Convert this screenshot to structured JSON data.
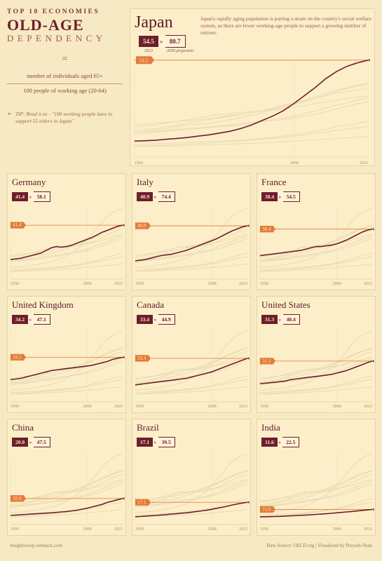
{
  "colors": {
    "bg": "#f7e9c4",
    "panel_bg": "#fbeec9",
    "dark": "#6e1e2c",
    "accent": "#e57a3a",
    "ghost": "#e8d4a0",
    "grid": "#d9c28f",
    "text_muted": "#9a5a4a"
  },
  "header": {
    "eyebrow": "TOP 10 ECONOMIES",
    "title1": "OLD-AGE",
    "title2": "DEPENDENCY",
    "eq": "=",
    "numerator": "number of individuals aged 65+",
    "denominator": "100 people of working age (20-64)",
    "tip": "TIP: Read it as - \"100 working people have to support 55 elders in Japan\""
  },
  "hero": {
    "country": "Japan",
    "desc": "Japan's rapidly aging population is putting a strain on the country's social welfare system, as there are fewer working-age people to support a growing number of retirees.",
    "current": "54.5",
    "projection": "80.7",
    "year_current": "2023",
    "year_proj": "2050 projection",
    "tag": "54.5",
    "xaxis": {
      "start": "1950",
      "mid": "2000",
      "end": "2023"
    },
    "series": [
      9,
      9.2,
      9.5,
      10,
      10.5,
      11,
      11.8,
      12.5,
      13.5,
      14.5,
      16,
      18,
      20.5,
      23,
      26,
      30,
      34.5,
      39,
      44,
      48,
      51,
      53,
      54.5
    ],
    "ghosts": [
      [
        15,
        15.5,
        16,
        17,
        18,
        19,
        20,
        21,
        22.5,
        23.5,
        24,
        25,
        26,
        27.5,
        29,
        30.5,
        32,
        34,
        36,
        37.5,
        39,
        40.5,
        41.4
      ],
      [
        14,
        14.5,
        15,
        16,
        17,
        18,
        18.5,
        19,
        20,
        21,
        22,
        23.5,
        25,
        26.5,
        28,
        29.5,
        31,
        33,
        35,
        37,
        38.5,
        40,
        40.9
      ],
      [
        18,
        18.5,
        19,
        19.5,
        20,
        20.5,
        21,
        21.5,
        22,
        23,
        24,
        25,
        26,
        27,
        28.5,
        30,
        31.5,
        33,
        34.5,
        36,
        37,
        37.8,
        38.4
      ],
      [
        17,
        17.5,
        18,
        19,
        20,
        21,
        22,
        23,
        24,
        24.5,
        25,
        25.5,
        26,
        26.5,
        27,
        28,
        29,
        30,
        31,
        32,
        33,
        33.8,
        34.2
      ],
      [
        13,
        13.5,
        14,
        14.5,
        15,
        15.5,
        16,
        16.5,
        17,
        17.5,
        18,
        19,
        20,
        21,
        22,
        23,
        24.5,
        26,
        27.5,
        29,
        30.5,
        32,
        33.4
      ],
      [
        14,
        14.3,
        14.7,
        15,
        15.5,
        16,
        16.5,
        17,
        17.5,
        18,
        19,
        19.5,
        20,
        20.5,
        21,
        22,
        23,
        24,
        25.5,
        27,
        28.5,
        30,
        31.3
      ],
      [
        7,
        7.2,
        7.5,
        7.8,
        8,
        8.3,
        8.5,
        8.8,
        9,
        9.3,
        9.7,
        10,
        10.5,
        11,
        11.8,
        12.5,
        13.5,
        14.5,
        15.5,
        17,
        18,
        19,
        20
      ],
      [
        6,
        6.2,
        6.5,
        6.8,
        7,
        7.3,
        7.6,
        8,
        8.3,
        8.7,
        9,
        9.5,
        10,
        10.5,
        11,
        11.7,
        12.5,
        13.2,
        14,
        15,
        15.8,
        16.5,
        17.1
      ],
      [
        6,
        6,
        6.1,
        6.2,
        6.3,
        6.5,
        6.7,
        6.9,
        7.1,
        7.3,
        7.5,
        7.8,
        8,
        8.3,
        8.6,
        9,
        9.3,
        9.7,
        10,
        10.4,
        10.8,
        11.2,
        11.6
      ]
    ]
  },
  "panels": [
    {
      "country": "Germany",
      "current": "41.4",
      "projection": "58.1",
      "tag": "41.4",
      "series": [
        15,
        15.5,
        16,
        17,
        18,
        19,
        20,
        22,
        24,
        25,
        24.5,
        25,
        26,
        27.5,
        29,
        30.5,
        32,
        34,
        36,
        37.5,
        39,
        40.5,
        41.4
      ]
    },
    {
      "country": "Italy",
      "current": "40.9",
      "projection": "74.4",
      "tag": "40.9",
      "series": [
        14,
        14.5,
        15,
        16,
        17,
        18,
        18.5,
        19,
        20,
        21,
        22,
        23.5,
        25,
        26.5,
        28,
        29.5,
        31,
        33,
        35,
        37,
        38.5,
        40,
        40.9
      ]
    },
    {
      "country": "France",
      "current": "38.4",
      "projection": "54.5",
      "tag": "38.4",
      "series": [
        18,
        18.5,
        19,
        19.5,
        20,
        20.5,
        21,
        21.5,
        22,
        23,
        24,
        25,
        25,
        25.5,
        26,
        27,
        28.5,
        30,
        32,
        34,
        36,
        37.5,
        38.4
      ]
    },
    {
      "country": "United Kingdom",
      "current": "34.2",
      "projection": "47.1",
      "tag": "34.2",
      "series": [
        17,
        17.5,
        18,
        19,
        20,
        21,
        22,
        23,
        24,
        24.5,
        25,
        25.5,
        26,
        26.5,
        27,
        27.5,
        28,
        29,
        30,
        31,
        32.5,
        33.5,
        34.2
      ]
    },
    {
      "country": "Canada",
      "current": "33.4",
      "projection": "44.9",
      "tag": "33.4",
      "series": [
        13,
        13.5,
        14,
        14.5,
        15,
        15.5,
        16,
        16.5,
        17,
        17.5,
        18,
        19,
        20,
        21,
        22,
        23,
        24.5,
        26,
        27.5,
        29,
        30.5,
        32,
        33.4
      ]
    },
    {
      "country": "United States",
      "current": "31.3",
      "projection": "40.4",
      "tag": "31.3",
      "series": [
        14,
        14.3,
        14.7,
        15,
        15.5,
        16,
        17,
        17.5,
        18,
        18.5,
        19,
        19.5,
        20,
        20.5,
        21,
        22,
        23,
        24,
        25.5,
        27,
        28.5,
        30,
        31.3
      ]
    },
    {
      "country": "China",
      "current": "20.0",
      "projection": "47.5",
      "tag": "20.0",
      "series": [
        7,
        7.2,
        7.5,
        7.8,
        8,
        8.3,
        8.5,
        8.8,
        9,
        9.3,
        9.7,
        10,
        10.5,
        11,
        11.8,
        12.5,
        13.5,
        14.5,
        15.5,
        17,
        18,
        19,
        20
      ]
    },
    {
      "country": "Brazil",
      "current": "17.1",
      "projection": "39.5",
      "tag": "17.1",
      "series": [
        6,
        6.2,
        6.5,
        6.8,
        7,
        7.3,
        7.6,
        8,
        8.3,
        8.7,
        9,
        9.5,
        10,
        10.5,
        11,
        11.7,
        12.5,
        13.2,
        14,
        15,
        15.8,
        16.5,
        17.1
      ]
    },
    {
      "country": "India",
      "current": "11.6",
      "projection": "22.5",
      "tag": "11.6",
      "series": [
        6,
        6,
        6.1,
        6.2,
        6.3,
        6.5,
        6.7,
        6.9,
        7.1,
        7.3,
        7.5,
        7.8,
        8,
        8.3,
        8.6,
        9,
        9.3,
        9.7,
        10,
        10.4,
        10.8,
        11.2,
        11.6
      ]
    }
  ],
  "chart_style": {
    "main_stroke": "#6e1e2c",
    "main_width": 1.6,
    "ghost_stroke": "#eadbb0",
    "ghost_width": 1,
    "ref_stroke": "#e57a3a",
    "ref_dash": "2 2",
    "y_max": 56,
    "small_y_max": 56
  },
  "footer": {
    "left": "insightscoop.substack.com",
    "right": "Data Source: OECD.org | Visualized by Preyash Shah"
  }
}
